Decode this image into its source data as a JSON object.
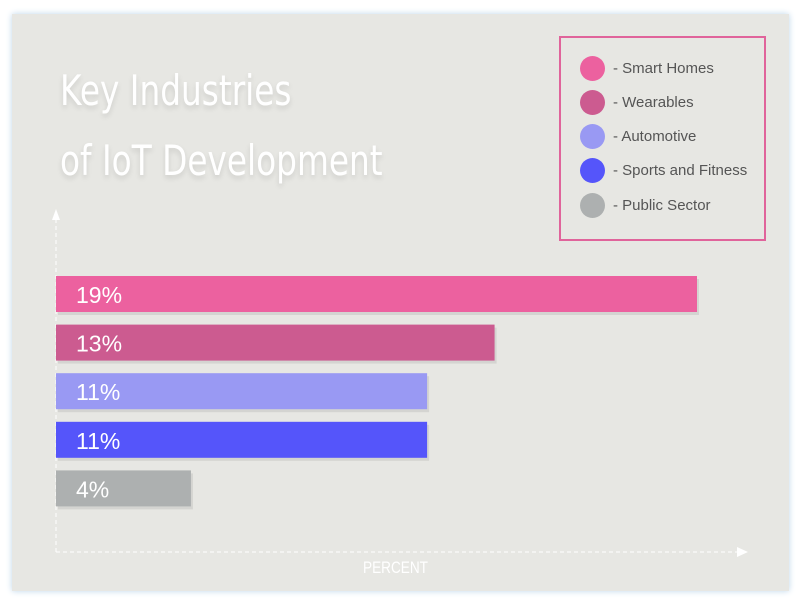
{
  "chart_data": {
    "type": "bar",
    "orientation": "horizontal",
    "title": "Key Industries of IoT Development",
    "title_lines": [
      "Key Industries",
      "of IoT Development"
    ],
    "xlabel": "PERCENT",
    "ylabel": "",
    "categories": [
      "Smart Homes",
      "Wearables",
      "Automotive",
      "Sports and Fitness",
      "Public Sector"
    ],
    "values": [
      19,
      13,
      11,
      11,
      4
    ],
    "data_labels": [
      "19%",
      "13%",
      "11%",
      "11%",
      "4%"
    ],
    "colors": [
      "#ec619f",
      "#cc5b90",
      "#9999f3",
      "#5555fa",
      "#adb0b0"
    ],
    "legend_labels": [
      "- Smart Homes",
      "- Wearables",
      "- Automotive",
      "- Sports and Fitness",
      "- Public Sector"
    ],
    "legend_position": "top-right",
    "legend_border_color": "#e0649b",
    "xlim": [
      0,
      20.9
    ],
    "grid": false
  }
}
